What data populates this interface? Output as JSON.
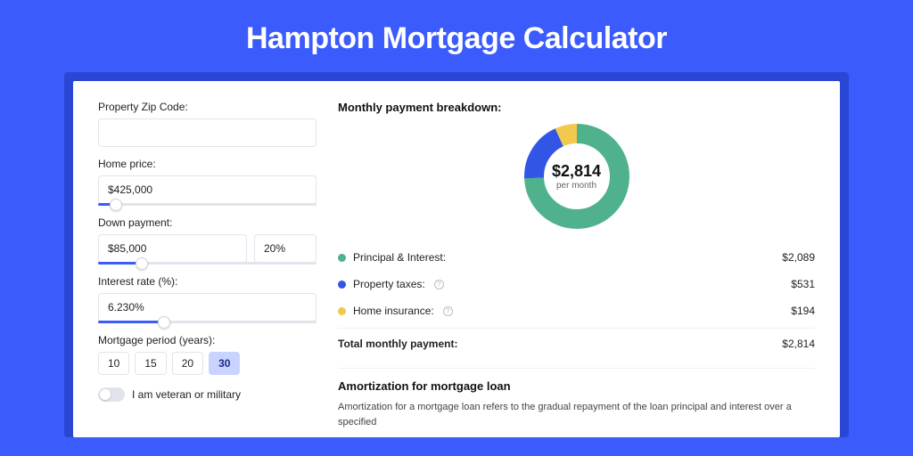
{
  "page": {
    "title": "Hampton Mortgage Calculator",
    "background_color": "#3b5bfd",
    "shadow_color": "#2a46d4",
    "card_color": "#ffffff"
  },
  "form": {
    "zip": {
      "label": "Property Zip Code:",
      "value": ""
    },
    "home_price": {
      "label": "Home price:",
      "value": "$425,000",
      "slider_pct": 8
    },
    "down_payment": {
      "label": "Down payment:",
      "amount": "$85,000",
      "percent": "20%",
      "slider_pct": 20
    },
    "interest_rate": {
      "label": "Interest rate (%):",
      "value": "6.230%",
      "slider_pct": 30
    },
    "period": {
      "label": "Mortgage period (years):",
      "options": [
        "10",
        "15",
        "20",
        "30"
      ],
      "selected": "30"
    },
    "veteran": {
      "label": "I am veteran or military",
      "on": false
    }
  },
  "breakdown": {
    "title": "Monthly payment breakdown:",
    "center_amount": "$2,814",
    "center_sub": "per month",
    "donut": {
      "type": "donut",
      "radius": 48,
      "stroke_width": 22,
      "background": "#ffffff",
      "slices": [
        {
          "key": "principal_interest",
          "value": 2089,
          "color": "#4fb28c"
        },
        {
          "key": "property_taxes",
          "value": 531,
          "color": "#3355e6"
        },
        {
          "key": "home_insurance",
          "value": 194,
          "color": "#f2c94c"
        }
      ],
      "total": 2814
    },
    "items": [
      {
        "label": "Principal & Interest:",
        "value": "$2,089",
        "color": "#4fb28c",
        "info": false
      },
      {
        "label": "Property taxes:",
        "value": "$531",
        "color": "#3355e6",
        "info": true
      },
      {
        "label": "Home insurance:",
        "value": "$194",
        "color": "#f2c94c",
        "info": true
      }
    ],
    "total": {
      "label": "Total monthly payment:",
      "value": "$2,814"
    }
  },
  "amortization": {
    "title": "Amortization for mortgage loan",
    "text": "Amortization for a mortgage loan refers to the gradual repayment of the loan principal and interest over a specified"
  }
}
